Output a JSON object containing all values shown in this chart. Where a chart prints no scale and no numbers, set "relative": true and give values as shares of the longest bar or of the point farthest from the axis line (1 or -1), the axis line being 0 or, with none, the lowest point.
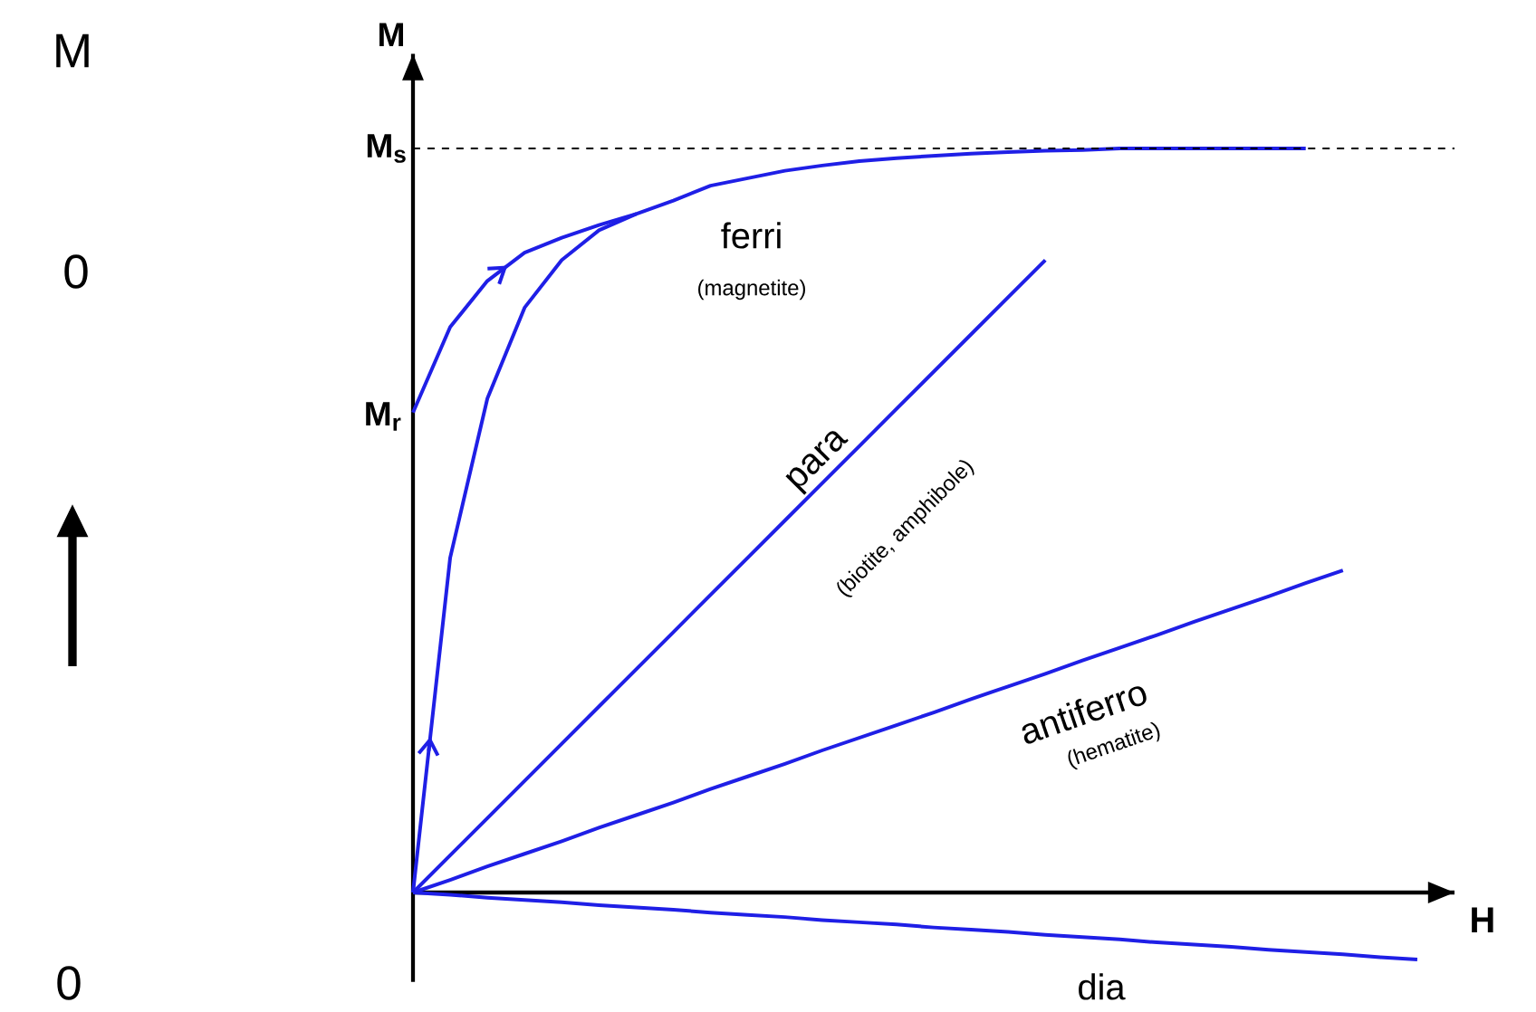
{
  "chart_data": {
    "type": "line",
    "relative": true,
    "xlabel": "H",
    "ylabel": "M",
    "line_style": "solid",
    "marker": "none",
    "categories": [
      null,
      null,
      null,
      null,
      null,
      null,
      null,
      null,
      null,
      null,
      null,
      null,
      null,
      null,
      null,
      null,
      null,
      null,
      null,
      null,
      null,
      null,
      null,
      null,
      null,
      null,
      null,
      null,
      null
    ],
    "series": [
      {
        "color": "#1f1fe6",
        "values": [
          0,
          0.45,
          0.664,
          0.786,
          0.85,
          0.89,
          0.912,
          0.93,
          0.95,
          0.96,
          0.97,
          0.977,
          0.983,
          0.987,
          0.99,
          0.993,
          0.995,
          0.997,
          0.998,
          1.0,
          1.0,
          1.0,
          1.0,
          1.0,
          1.0,
          null,
          null,
          null,
          null
        ]
      },
      {
        "color": "#1f1fe6",
        "values": [
          0.645,
          0.76,
          0.822,
          0.86,
          0.88,
          0.897,
          0.912,
          null,
          null,
          null,
          null,
          null,
          null,
          null,
          null,
          null,
          null,
          null,
          null,
          null,
          null,
          null,
          null,
          null,
          null,
          null,
          null,
          null,
          null
        ]
      },
      {
        "color": "#1f1fe6",
        "values": [
          0,
          0.05,
          0.1,
          0.15,
          0.2,
          0.25,
          0.3,
          0.35,
          0.4,
          0.45,
          0.5,
          0.55,
          0.6,
          0.65,
          0.7,
          0.75,
          0.8,
          0.85,
          null,
          null,
          null,
          null,
          null,
          null,
          null,
          null,
          null,
          null,
          null
        ]
      },
      {
        "color": "#1f1fe6",
        "values": [
          0,
          0.017,
          0.035,
          0.052,
          0.069,
          0.087,
          0.104,
          0.121,
          0.139,
          0.156,
          0.173,
          0.191,
          0.208,
          0.225,
          0.242,
          0.26,
          0.277,
          0.294,
          0.312,
          0.329,
          0.346,
          0.364,
          0.381,
          0.398,
          0.416,
          0.433,
          null,
          null,
          null
        ]
      },
      {
        "color": "#1f1fe6",
        "values": [
          0,
          -0.003,
          -0.007,
          -0.01,
          -0.013,
          -0.017,
          -0.02,
          -0.023,
          -0.027,
          -0.03,
          -0.033,
          -0.037,
          -0.04,
          -0.043,
          -0.047,
          -0.05,
          -0.053,
          -0.057,
          -0.06,
          -0.063,
          -0.067,
          -0.07,
          -0.073,
          -0.077,
          -0.08,
          -0.083,
          -0.087,
          -0.09,
          null
        ]
      }
    ],
    "ref_lines": [
      {
        "axis": "y",
        "value": 1.0,
        "label": "M$_{s}$",
        "color": "#000000",
        "line_style": "dashed"
      }
    ],
    "annotations": [
      "M$_{r}$",
      "ferri",
      "(magnetite)",
      "para",
      "(biotite, amphibole)",
      "antiferro",
      "(hematite)",
      "dia",
      "M",
      "0",
      "0"
    ]
  }
}
